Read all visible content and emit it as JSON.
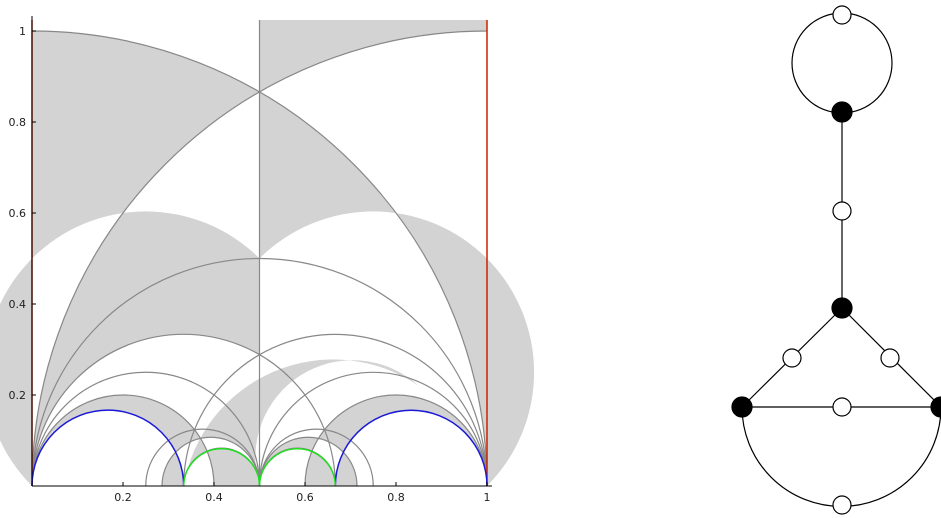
{
  "colors": {
    "region_fill": "#d3d3d3",
    "region_edge": "#888888",
    "axis": "#000000",
    "boundary_red": "#cc2200",
    "boundary_blue": "#1a1ad6",
    "boundary_green": "#22dd22",
    "vertex_black": "#000000",
    "vertex_white": "#ffffff"
  },
  "diagram": {
    "x_ticks": [
      "0.2",
      "0.4",
      "0.6",
      "0.8",
      "1"
    ],
    "y_ticks": [
      "0.2",
      "0.4",
      "0.6",
      "0.8",
      "1"
    ]
  },
  "graph": {
    "black_vertices": 4,
    "white_vertices": 6
  }
}
